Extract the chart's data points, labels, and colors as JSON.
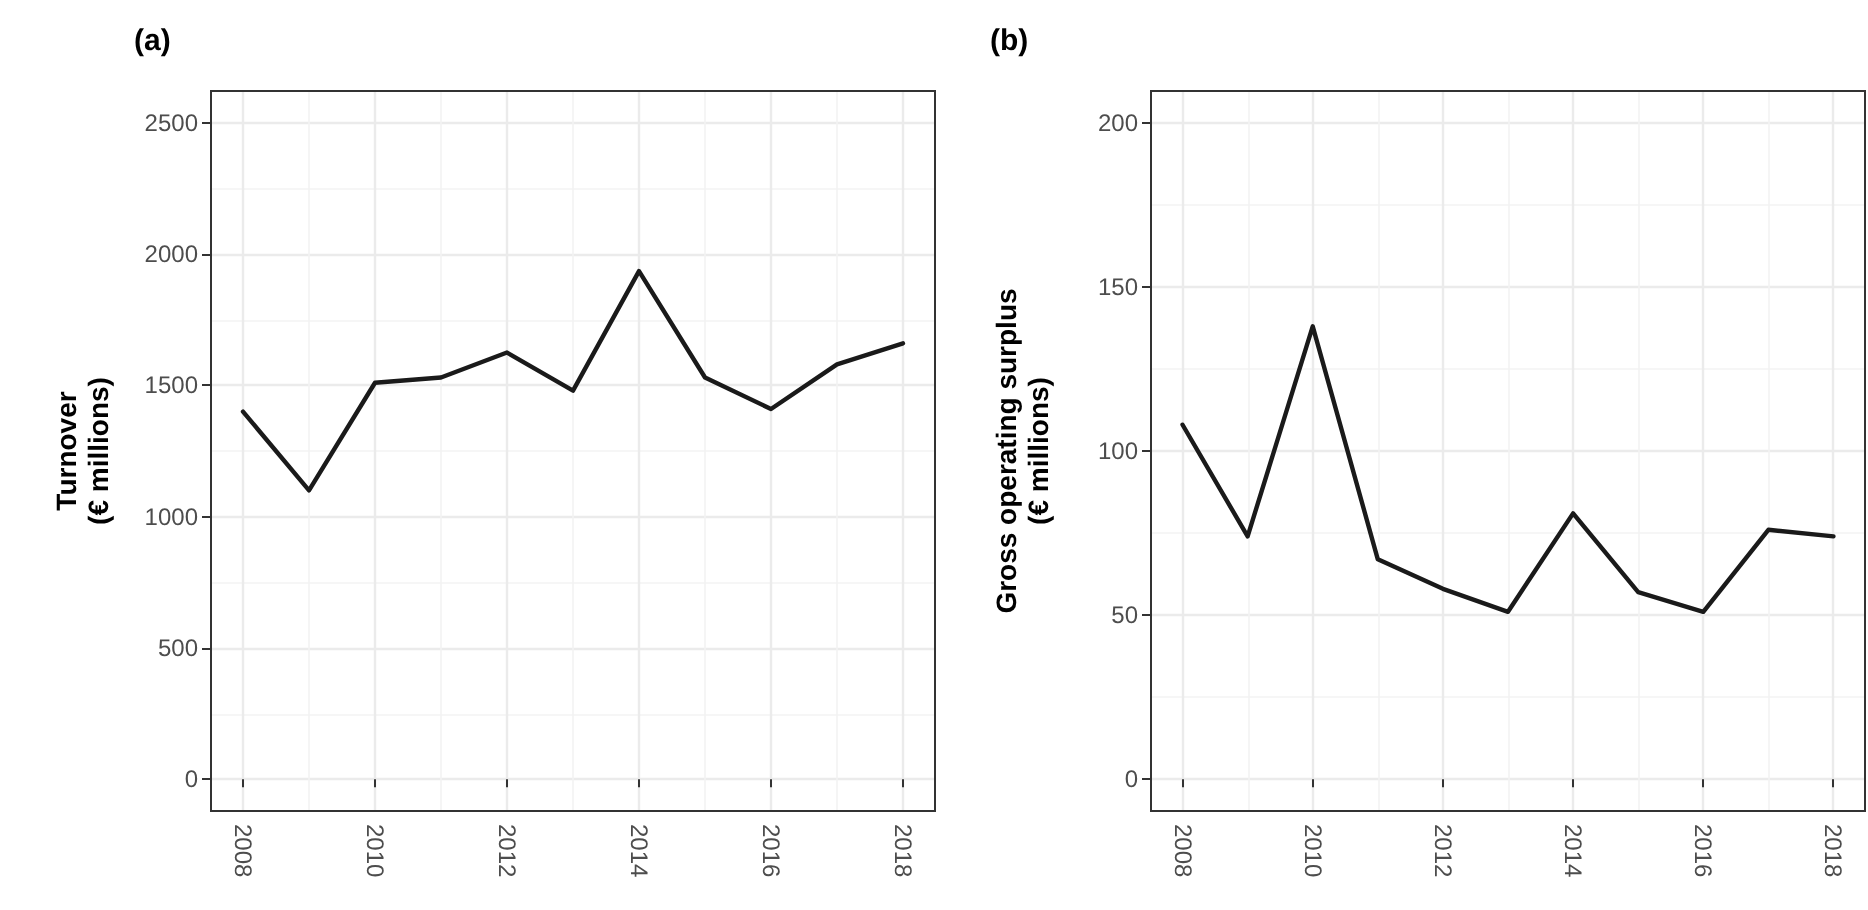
{
  "chart_data": [
    {
      "type": "line",
      "title": "(a)",
      "ylabel": "Turnover\n(€ millions)",
      "x": [
        2008,
        2009,
        2010,
        2011,
        2012,
        2013,
        2014,
        2015,
        2016,
        2017,
        2018
      ],
      "series": [
        {
          "color": "#1a1a1a",
          "values": [
            1400,
            1100,
            1510,
            1530,
            1625,
            1480,
            1935,
            1530,
            1410,
            1580,
            1660
          ]
        }
      ],
      "xlim": [
        2007.5,
        2018.5
      ],
      "xticks": [
        2008,
        2010,
        2012,
        2014,
        2016,
        2018
      ],
      "ylim": [
        -125,
        2625
      ],
      "yticks": [
        0,
        500,
        1000,
        1500,
        2000,
        2500
      ],
      "grid": true,
      "marker": "none",
      "line_style": "solid"
    },
    {
      "type": "line",
      "title": "(b)",
      "ylabel": "Gross operating surplus\n(€ millions)",
      "x": [
        2008,
        2009,
        2010,
        2011,
        2012,
        2013,
        2014,
        2015,
        2016,
        2017,
        2018
      ],
      "series": [
        {
          "color": "#1a1a1a",
          "values": [
            108,
            74,
            138,
            67,
            58,
            51,
            81,
            57,
            51,
            76,
            74
          ]
        }
      ],
      "xlim": [
        2007.5,
        2018.5
      ],
      "xticks": [
        2008,
        2010,
        2012,
        2014,
        2016,
        2018
      ],
      "ylim": [
        -10,
        210
      ],
      "yticks": [
        0,
        50,
        100,
        150,
        200
      ],
      "grid": true,
      "marker": "none",
      "line_style": "solid"
    }
  ]
}
